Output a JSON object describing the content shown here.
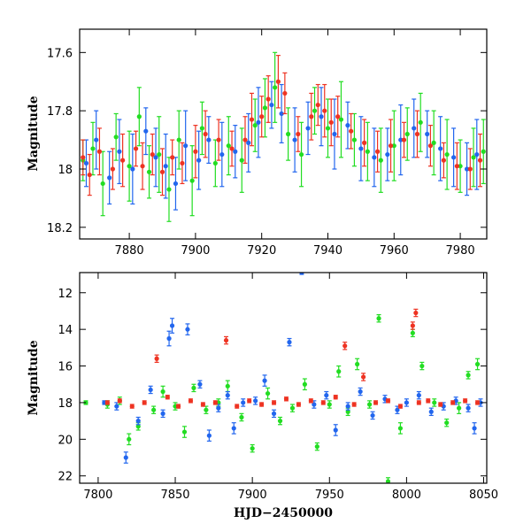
{
  "chart_data": [
    {
      "type": "scatter",
      "xlim": [
        7865,
        7988
      ],
      "ylim": [
        18.24,
        17.52
      ],
      "y_inverted": true,
      "xlabel": "",
      "ylabel": "Magnitude",
      "xticks": [
        7880,
        7900,
        7920,
        7940,
        7960,
        7980
      ],
      "xtick_labels": [
        "7880",
        "7900",
        "7920",
        "7940",
        "7960",
        "7980"
      ],
      "yticks": [
        17.6,
        17.8,
        18,
        18.2
      ],
      "ytick_labels": [
        "17.6",
        "17.8",
        "18",
        "18.2"
      ],
      "grid": false,
      "series": [
        {
          "color": "#22dd22",
          "x": [
            7866,
            7869,
            7872,
            7876,
            7880,
            7883,
            7886,
            7889,
            7892,
            7895,
            7899,
            7902,
            7906,
            7910,
            7914,
            7918,
            7921,
            7924,
            7928,
            7932,
            7936,
            7940,
            7944,
            7948,
            7952,
            7956,
            7960,
            7964,
            7968,
            7972,
            7976,
            7980,
            7984,
            7987
          ],
          "y": [
            17.97,
            17.93,
            18.05,
            17.89,
            17.99,
            17.82,
            18.01,
            17.95,
            18.07,
            17.9,
            18.04,
            17.86,
            17.98,
            17.92,
            17.97,
            17.85,
            17.79,
            17.72,
            17.88,
            17.95,
            17.8,
            17.86,
            17.83,
            17.9,
            17.94,
            17.97,
            17.92,
            17.88,
            17.84,
            17.91,
            17.95,
            17.99,
            17.96,
            17.94
          ],
          "err": [
            0.07,
            0.09,
            0.11,
            0.08,
            0.12,
            0.1,
            0.09,
            0.13,
            0.11,
            0.1,
            0.12,
            0.09,
            0.08,
            0.1,
            0.11,
            0.09,
            0.1,
            0.12,
            0.09,
            0.11,
            0.08,
            0.1,
            0.13,
            0.09,
            0.1,
            0.11,
            0.12,
            0.09,
            0.1,
            0.11,
            0.12,
            0.09,
            0.1,
            0.11
          ]
        },
        {
          "color": "#2266ee",
          "x": [
            7867,
            7870,
            7874,
            7877,
            7881,
            7885,
            7888,
            7891,
            7894,
            7897,
            7901,
            7904,
            7908,
            7912,
            7916,
            7919,
            7923,
            7926,
            7930,
            7934,
            7938,
            7942,
            7946,
            7950,
            7954,
            7958,
            7962,
            7966,
            7970,
            7974,
            7978,
            7982,
            7985
          ],
          "y": [
            17.98,
            17.9,
            18.03,
            17.94,
            18.0,
            17.87,
            17.96,
            17.99,
            18.05,
            17.92,
            17.97,
            17.9,
            17.95,
            17.94,
            17.91,
            17.84,
            17.78,
            17.81,
            17.9,
            17.86,
            17.82,
            17.88,
            17.85,
            17.93,
            17.96,
            17.95,
            17.9,
            17.86,
            17.88,
            17.93,
            17.96,
            18.0,
            17.95
          ],
          "err": [
            0.08,
            0.1,
            0.09,
            0.11,
            0.12,
            0.08,
            0.1,
            0.11,
            0.09,
            0.12,
            0.1,
            0.08,
            0.11,
            0.09,
            0.1,
            0.12,
            0.08,
            0.1,
            0.11,
            0.09,
            0.1,
            0.12,
            0.08,
            0.11,
            0.1,
            0.09,
            0.12,
            0.1,
            0.08,
            0.11,
            0.1,
            0.09,
            0.12
          ]
        },
        {
          "color": "#ee3322",
          "x": [
            7866,
            7868,
            7871,
            7875,
            7878,
            7882,
            7884,
            7887,
            7890,
            7893,
            7896,
            7900,
            7903,
            7907,
            7911,
            7915,
            7917,
            7920,
            7922,
            7925,
            7927,
            7931,
            7935,
            7937,
            7939,
            7941,
            7943,
            7947,
            7951,
            7955,
            7959,
            7963,
            7967,
            7971,
            7975,
            7979,
            7983,
            7986
          ],
          "y": [
            17.96,
            18.02,
            17.94,
            18.0,
            17.97,
            17.93,
            17.99,
            17.95,
            18.01,
            17.96,
            17.98,
            17.94,
            17.88,
            17.9,
            17.93,
            17.9,
            17.83,
            17.82,
            17.76,
            17.7,
            17.74,
            17.88,
            17.82,
            17.78,
            17.8,
            17.84,
            17.82,
            17.87,
            17.91,
            17.94,
            17.92,
            17.9,
            17.88,
            17.92,
            17.97,
            17.99,
            18.0,
            17.97
          ],
          "err": [
            0.06,
            0.07,
            0.08,
            0.07,
            0.09,
            0.06,
            0.08,
            0.07,
            0.08,
            0.06,
            0.07,
            0.09,
            0.08,
            0.07,
            0.06,
            0.08,
            0.09,
            0.07,
            0.08,
            0.09,
            0.07,
            0.06,
            0.08,
            0.07,
            0.09,
            0.08,
            0.07,
            0.06,
            0.08,
            0.07,
            0.09,
            0.06,
            0.08,
            0.07,
            0.06,
            0.08,
            0.07,
            0.09
          ]
        }
      ]
    },
    {
      "type": "scatter",
      "xlim": [
        7788,
        8052
      ],
      "ylim": [
        22.4,
        10.9
      ],
      "y_inverted": true,
      "xlabel": "HJD−2450000",
      "ylabel": "Magnitude",
      "xticks": [
        7800,
        7850,
        7900,
        7950,
        8000,
        8050
      ],
      "xtick_labels": [
        "7800",
        "7850",
        "7900",
        "7950",
        "8000",
        "8050"
      ],
      "yticks": [
        12,
        14,
        16,
        18,
        20,
        22
      ],
      "ytick_labels": [
        "12",
        "14",
        "16",
        "18",
        "20",
        "22"
      ],
      "grid": false,
      "series": [
        {
          "color": "#22dd22",
          "x": [
            7792,
            7806,
            7814,
            7820,
            7826,
            7836,
            7842,
            7850,
            7856,
            7862,
            7870,
            7878,
            7884,
            7893,
            7900,
            7910,
            7918,
            7926,
            7934,
            7942,
            7950,
            7956,
            7962,
            7968,
            7976,
            7982,
            7988,
            7996,
            8004,
            8010,
            8018,
            8026,
            8034,
            8040,
            8046
          ],
          "y": [
            18.0,
            18.1,
            17.9,
            20.0,
            19.3,
            18.4,
            17.4,
            18.2,
            19.6,
            17.2,
            18.4,
            18.0,
            17.1,
            18.8,
            20.5,
            17.5,
            19.0,
            18.3,
            17.0,
            20.4,
            18.1,
            16.3,
            18.5,
            15.9,
            18.1,
            13.4,
            22.3,
            19.4,
            14.2,
            16.0,
            18.0,
            19.1,
            18.3,
            16.5,
            15.9
          ],
          "err": [
            0.1,
            0.2,
            0.2,
            0.3,
            0.2,
            0.2,
            0.3,
            0.2,
            0.3,
            0.2,
            0.2,
            0.2,
            0.3,
            0.2,
            0.2,
            0.3,
            0.2,
            0.2,
            0.3,
            0.2,
            0.2,
            0.3,
            0.2,
            0.3,
            0.2,
            0.2,
            0.2,
            0.3,
            0.2,
            0.2,
            0.2,
            0.2,
            0.3,
            0.2,
            0.3
          ]
        },
        {
          "color": "#2266ee",
          "x": [
            7804,
            7812,
            7818,
            7826,
            7834,
            7842,
            7846,
            7848,
            7858,
            7866,
            7872,
            7878,
            7884,
            7888,
            7894,
            7902,
            7908,
            7914,
            7924,
            7932,
            7940,
            7948,
            7954,
            7962,
            7970,
            7978,
            7986,
            7994,
            8000,
            8008,
            8016,
            8024,
            8032,
            8040,
            8044,
            8048
          ],
          "y": [
            18.0,
            18.2,
            21.0,
            19.0,
            17.3,
            18.6,
            14.5,
            13.8,
            14.0,
            17.0,
            19.8,
            18.3,
            17.6,
            19.4,
            18.0,
            17.9,
            16.8,
            18.6,
            14.7,
            10.9,
            18.1,
            17.6,
            19.5,
            18.2,
            17.4,
            18.7,
            17.8,
            18.4,
            18.0,
            17.6,
            18.5,
            18.2,
            17.9,
            18.3,
            19.4,
            18.0
          ],
          "err": [
            0.1,
            0.2,
            0.3,
            0.2,
            0.2,
            0.2,
            0.4,
            0.4,
            0.3,
            0.2,
            0.3,
            0.2,
            0.2,
            0.3,
            0.2,
            0.2,
            0.3,
            0.2,
            0.2,
            0.1,
            0.2,
            0.2,
            0.3,
            0.2,
            0.2,
            0.2,
            0.2,
            0.2,
            0.2,
            0.2,
            0.2,
            0.2,
            0.2,
            0.2,
            0.3,
            0.2
          ]
        },
        {
          "color": "#ee3322",
          "x": [
            7806,
            7814,
            7822,
            7830,
            7838,
            7845,
            7852,
            7860,
            7868,
            7876,
            7883,
            7890,
            7898,
            7906,
            7914,
            7922,
            7930,
            7938,
            7946,
            7954,
            7960,
            7966,
            7972,
            7980,
            7988,
            7996,
            8004,
            8006,
            8008,
            8014,
            8022,
            8030,
            8038,
            8046
          ],
          "y": [
            18.0,
            17.9,
            18.2,
            18.0,
            15.6,
            17.7,
            18.2,
            17.9,
            18.1,
            18.0,
            14.6,
            18.2,
            17.9,
            18.1,
            18.0,
            17.8,
            18.1,
            17.9,
            18.0,
            17.7,
            14.9,
            18.1,
            16.6,
            18.0,
            17.9,
            18.2,
            13.8,
            13.1,
            18.0,
            17.9,
            18.1,
            18.0,
            17.9,
            18.0
          ],
          "err": [
            0.1,
            0.1,
            0.1,
            0.1,
            0.2,
            0.1,
            0.1,
            0.1,
            0.1,
            0.1,
            0.2,
            0.1,
            0.1,
            0.1,
            0.1,
            0.1,
            0.1,
            0.1,
            0.1,
            0.1,
            0.2,
            0.1,
            0.2,
            0.1,
            0.1,
            0.1,
            0.2,
            0.2,
            0.1,
            0.1,
            0.1,
            0.1,
            0.1,
            0.1
          ]
        }
      ]
    }
  ]
}
